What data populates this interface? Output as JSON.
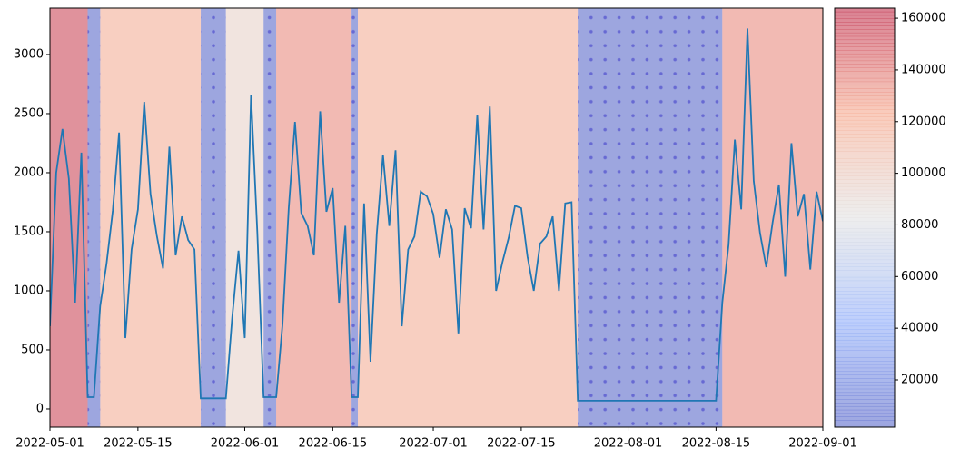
{
  "chart_data": {
    "type": "line",
    "color": "#1f77b4",
    "x": [
      "2022-05-01",
      "2022-05-02",
      "2022-05-03",
      "2022-05-04",
      "2022-05-05",
      "2022-05-06",
      "2022-05-07",
      "2022-05-08",
      "2022-05-09",
      "2022-05-10",
      "2022-05-11",
      "2022-05-12",
      "2022-05-13",
      "2022-05-14",
      "2022-05-15",
      "2022-05-16",
      "2022-05-17",
      "2022-05-18",
      "2022-05-19",
      "2022-05-20",
      "2022-05-21",
      "2022-05-22",
      "2022-05-23",
      "2022-05-24",
      "2022-05-25",
      "2022-05-26",
      "2022-05-27",
      "2022-05-28",
      "2022-05-29",
      "2022-05-30",
      "2022-05-31",
      "2022-06-01",
      "2022-06-02",
      "2022-06-03",
      "2022-06-04",
      "2022-06-05",
      "2022-06-06",
      "2022-06-07",
      "2022-06-08",
      "2022-06-09",
      "2022-06-10",
      "2022-06-11",
      "2022-06-12",
      "2022-06-13",
      "2022-06-14",
      "2022-06-15",
      "2022-06-16",
      "2022-06-17",
      "2022-06-18",
      "2022-06-19",
      "2022-06-20",
      "2022-06-21",
      "2022-06-22",
      "2022-06-23",
      "2022-06-24",
      "2022-06-25",
      "2022-06-26",
      "2022-06-27",
      "2022-06-28",
      "2022-06-29",
      "2022-06-30",
      "2022-07-01",
      "2022-07-02",
      "2022-07-03",
      "2022-07-04",
      "2022-07-05",
      "2022-07-06",
      "2022-07-07",
      "2022-07-08",
      "2022-07-09",
      "2022-07-10",
      "2022-07-11",
      "2022-07-12",
      "2022-07-13",
      "2022-07-14",
      "2022-07-15",
      "2022-07-16",
      "2022-07-17",
      "2022-07-18",
      "2022-07-19",
      "2022-07-20",
      "2022-07-21",
      "2022-07-22",
      "2022-07-23",
      "2022-07-24",
      "2022-07-25",
      "2022-07-26",
      "2022-07-27",
      "2022-07-28",
      "2022-07-29",
      "2022-07-30",
      "2022-07-31",
      "2022-08-01",
      "2022-08-02",
      "2022-08-03",
      "2022-08-04",
      "2022-08-05",
      "2022-08-06",
      "2022-08-07",
      "2022-08-08",
      "2022-08-09",
      "2022-08-10",
      "2022-08-11",
      "2022-08-12",
      "2022-08-13",
      "2022-08-14",
      "2022-08-15",
      "2022-08-16",
      "2022-08-17",
      "2022-08-18",
      "2022-08-19",
      "2022-08-20",
      "2022-08-21",
      "2022-08-22",
      "2022-08-23",
      "2022-08-24",
      "2022-08-25",
      "2022-08-26",
      "2022-08-27",
      "2022-08-28",
      "2022-08-29",
      "2022-08-30",
      "2022-08-31",
      "2022-09-01"
    ],
    "values": [
      700,
      2000,
      2370,
      1950,
      900,
      2170,
      100,
      100,
      870,
      1230,
      1680,
      2340,
      600,
      1350,
      1690,
      2600,
      1820,
      1470,
      1190,
      2220,
      1300,
      1630,
      1430,
      1350,
      90,
      90,
      90,
      90,
      90,
      770,
      1340,
      600,
      2660,
      1500,
      100,
      100,
      100,
      710,
      1700,
      2430,
      1660,
      1550,
      1300,
      2520,
      1670,
      1870,
      900,
      1550,
      100,
      100,
      1740,
      400,
      1480,
      2150,
      1550,
      2190,
      700,
      1350,
      1460,
      1840,
      1800,
      1650,
      1280,
      1690,
      1520,
      640,
      1700,
      1530,
      2490,
      1520,
      2560,
      1000,
      1240,
      1450,
      1720,
      1700,
      1290,
      1000,
      1400,
      1460,
      1630,
      1000,
      1740,
      1750,
      70,
      70,
      70,
      70,
      70,
      70,
      70,
      70,
      70,
      70,
      70,
      70,
      70,
      70,
      70,
      70,
      70,
      70,
      70,
      70,
      70,
      70,
      70,
      900,
      1390,
      2280,
      1690,
      3220,
      1930,
      1490,
      1200,
      1580,
      1900,
      1120,
      2250,
      1630,
      1820,
      1180,
      1840,
      1590
    ],
    "xlim": [
      "2022-05-01",
      "2022-09-01"
    ],
    "xticks": [
      "2022-05-01",
      "2022-05-15",
      "2022-06-01",
      "2022-06-15",
      "2022-07-01",
      "2022-07-15",
      "2022-08-01",
      "2022-08-15",
      "2022-09-01"
    ],
    "ylim": [
      -154,
      3392
    ],
    "yticks": [
      0,
      500,
      1000,
      1500,
      2000,
      2500,
      3000
    ],
    "regions": [
      {
        "start": "2022-05-01",
        "end": "2022-05-07",
        "value": 155000,
        "hatch": false
      },
      {
        "start": "2022-05-07",
        "end": "2022-05-09",
        "value": 2000,
        "hatch": true
      },
      {
        "start": "2022-05-09",
        "end": "2022-05-25",
        "value": 120000,
        "hatch": false
      },
      {
        "start": "2022-05-25",
        "end": "2022-05-29",
        "value": 2000,
        "hatch": true
      },
      {
        "start": "2022-05-29",
        "end": "2022-06-04",
        "value": 95000,
        "hatch": false
      },
      {
        "start": "2022-06-04",
        "end": "2022-06-06",
        "value": 2000,
        "hatch": true
      },
      {
        "start": "2022-06-06",
        "end": "2022-06-18",
        "value": 133000,
        "hatch": false
      },
      {
        "start": "2022-06-18",
        "end": "2022-06-19",
        "value": 2000,
        "hatch": true
      },
      {
        "start": "2022-06-19",
        "end": "2022-07-24",
        "value": 120000,
        "hatch": false
      },
      {
        "start": "2022-07-24",
        "end": "2022-08-16",
        "value": 2000,
        "hatch": true
      },
      {
        "start": "2022-08-16",
        "end": "2022-09-01",
        "value": 133000,
        "hatch": false
      }
    ],
    "colorbar": {
      "clim": [
        1700,
        163900
      ],
      "ticks": [
        20000,
        40000,
        60000,
        80000,
        100000,
        120000,
        140000,
        160000
      ]
    }
  }
}
